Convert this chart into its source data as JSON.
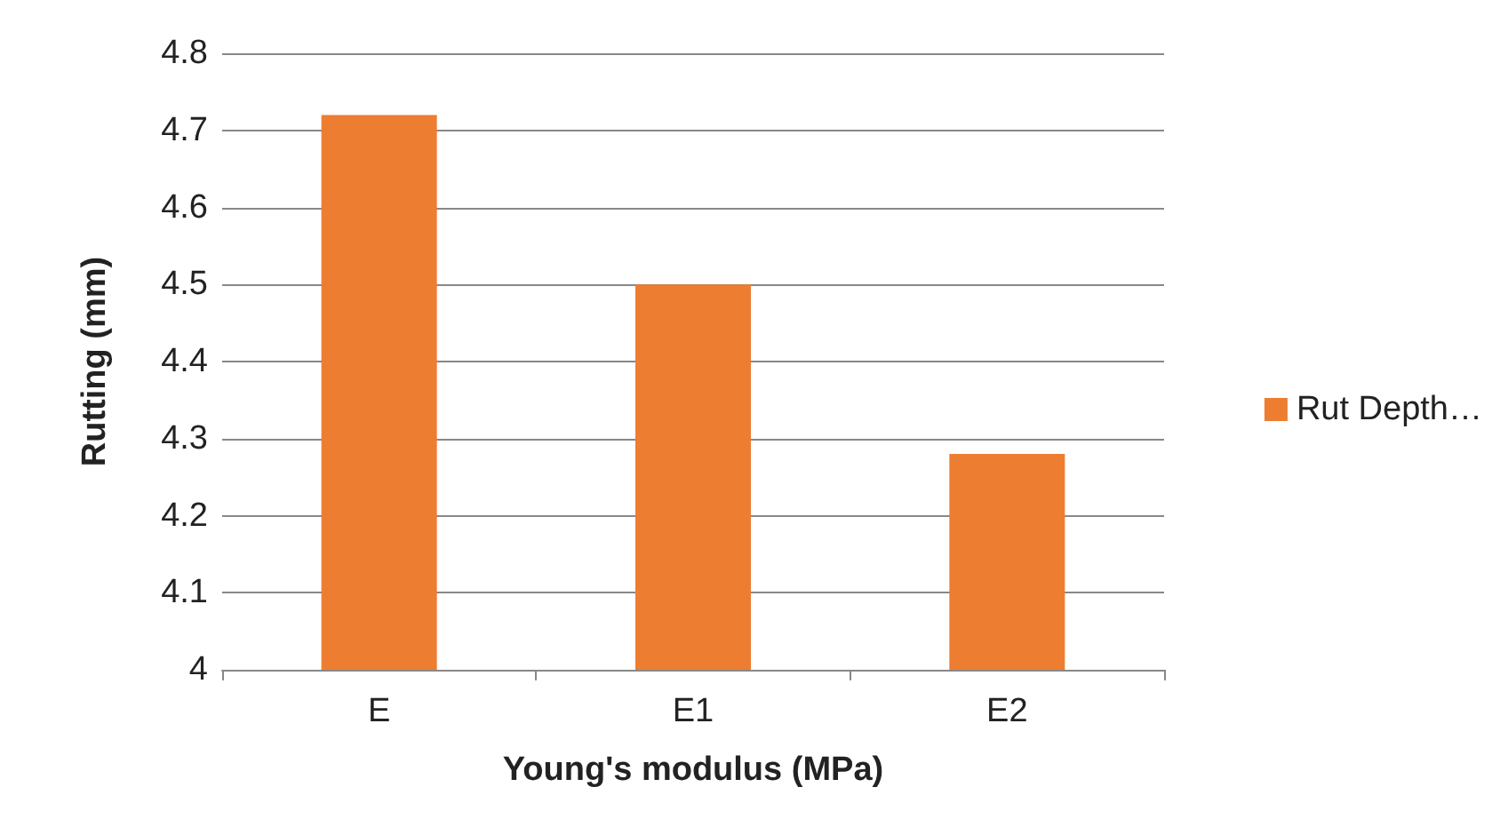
{
  "chart_data": {
    "type": "bar",
    "xlabel": "Young's modulus (MPa)",
    "ylabel": "Rutting (mm)",
    "categories": [
      "E",
      "E1",
      "E2"
    ],
    "series": [
      {
        "name": "Rut Depth…",
        "color": "#ed7d31",
        "values": [
          4.72,
          4.5,
          4.28
        ]
      }
    ],
    "ylim": [
      4,
      4.8
    ],
    "yticks": [
      4,
      4.1,
      4.2,
      4.3,
      4.4,
      4.5,
      4.6,
      4.7,
      4.8
    ],
    "grid": "y",
    "legend": "right"
  }
}
